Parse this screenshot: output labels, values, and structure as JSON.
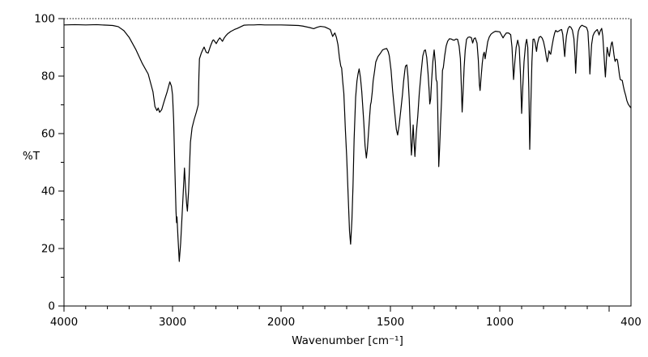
{
  "figure": {
    "background": "#ffffff",
    "line_color": "#000000"
  },
  "chart_data": {
    "type": "line",
    "title": "",
    "xlabel": "Wavenumber [cm⁻¹]",
    "ylabel": "%T",
    "xlim": [
      4000,
      400
    ],
    "ylim": [
      0,
      100
    ],
    "x_axis": {
      "reversed": true,
      "split_scale_at": 2000,
      "major_ticks": [
        4000,
        3000,
        2000,
        1500,
        1000,
        500
      ],
      "minor_ticks": [
        3800,
        3600,
        3400,
        3200,
        2800,
        2600,
        2400,
        2200,
        1900,
        1800,
        1700,
        1600,
        1400,
        1300,
        1200,
        1100,
        900,
        800,
        700,
        600
      ],
      "labels": [
        {
          "value": 4000,
          "text": "4000"
        },
        {
          "value": 3000,
          "text": "3000"
        },
        {
          "value": 2000,
          "text": "2000"
        },
        {
          "value": 1500,
          "text": "1500"
        },
        {
          "value": 1000,
          "text": "1000"
        },
        {
          "value": 400,
          "text": "400"
        }
      ]
    },
    "y_axis": {
      "major_ticks": [
        0,
        20,
        40,
        60,
        80,
        100
      ],
      "minor_ticks": [
        10,
        30,
        50,
        70,
        90
      ],
      "labels": [
        {
          "value": 0,
          "text": "0"
        },
        {
          "value": 20,
          "text": "20"
        },
        {
          "value": 40,
          "text": "40"
        },
        {
          "value": 60,
          "text": "60"
        },
        {
          "value": 80,
          "text": "80"
        },
        {
          "value": 100,
          "text": "100"
        }
      ]
    },
    "points": [
      [
        4000,
        97.8
      ],
      [
        3900,
        97.9
      ],
      [
        3800,
        97.8
      ],
      [
        3700,
        97.9
      ],
      [
        3650,
        97.8
      ],
      [
        3600,
        97.7
      ],
      [
        3550,
        97.6
      ],
      [
        3500,
        97.2
      ],
      [
        3448,
        95.8
      ],
      [
        3400,
        93.5
      ],
      [
        3336,
        89.1
      ],
      [
        3280,
        84.5
      ],
      [
        3224,
        80.7
      ],
      [
        3180,
        74.5
      ],
      [
        3162,
        69.4
      ],
      [
        3144,
        68.0
      ],
      [
        3132,
        68.9
      ],
      [
        3119,
        67.4
      ],
      [
        3100,
        68.3
      ],
      [
        3075,
        71.5
      ],
      [
        3050,
        74.5
      ],
      [
        3025,
        78.0
      ],
      [
        3010,
        76.5
      ],
      [
        3000,
        73.5
      ],
      [
        2990,
        65.0
      ],
      [
        2978,
        47.0
      ],
      [
        2968,
        33.0
      ],
      [
        2963,
        29.0
      ],
      [
        2959,
        31.0
      ],
      [
        2950,
        24.0
      ],
      [
        2938,
        15.5
      ],
      [
        2925,
        22.0
      ],
      [
        2910,
        33.0
      ],
      [
        2898,
        42.0
      ],
      [
        2890,
        48.0
      ],
      [
        2880,
        41.0
      ],
      [
        2870,
        35.5
      ],
      [
        2863,
        33.0
      ],
      [
        2852,
        40.0
      ],
      [
        2842,
        50.0
      ],
      [
        2835,
        57.0
      ],
      [
        2820,
        62.0
      ],
      [
        2800,
        65.0
      ],
      [
        2780,
        67.5
      ],
      [
        2763,
        70.0
      ],
      [
        2757,
        80.0
      ],
      [
        2752,
        86.0
      ],
      [
        2735,
        88.0
      ],
      [
        2720,
        89.3
      ],
      [
        2709,
        90.1
      ],
      [
        2690,
        88.3
      ],
      [
        2672,
        88.0
      ],
      [
        2650,
        90.5
      ],
      [
        2630,
        92.4
      ],
      [
        2622,
        92.6
      ],
      [
        2610,
        92.0
      ],
      [
        2597,
        91.3
      ],
      [
        2580,
        92.5
      ],
      [
        2565,
        93.3
      ],
      [
        2552,
        92.7
      ],
      [
        2540,
        92.1
      ],
      [
        2525,
        93.2
      ],
      [
        2510,
        94.0
      ],
      [
        2490,
        94.8
      ],
      [
        2465,
        95.5
      ],
      [
        2430,
        96.2
      ],
      [
        2403,
        96.6
      ],
      [
        2370,
        97.2
      ],
      [
        2343,
        97.7
      ],
      [
        2300,
        97.8
      ],
      [
        2250,
        97.8
      ],
      [
        2200,
        97.9
      ],
      [
        2150,
        97.8
      ],
      [
        2100,
        97.8
      ],
      [
        2050,
        97.8
      ],
      [
        2000,
        97.8
      ],
      [
        1960,
        97.7
      ],
      [
        1920,
        97.6
      ],
      [
        1900,
        97.4
      ],
      [
        1870,
        96.9
      ],
      [
        1851,
        96.5
      ],
      [
        1835,
        97.0
      ],
      [
        1820,
        97.3
      ],
      [
        1800,
        97.1
      ],
      [
        1789,
        96.7
      ],
      [
        1775,
        96.2
      ],
      [
        1764,
        93.8
      ],
      [
        1758,
        94.6
      ],
      [
        1754,
        95.0
      ],
      [
        1747,
        93.5
      ],
      [
        1740,
        91.0
      ],
      [
        1733,
        86.3
      ],
      [
        1727,
        83.5
      ],
      [
        1723,
        82.8
      ],
      [
        1718,
        78.0
      ],
      [
        1713,
        74.0
      ],
      [
        1709,
        67.0
      ],
      [
        1706,
        61.4
      ],
      [
        1700,
        52.0
      ],
      [
        1693,
        38.0
      ],
      [
        1687,
        26.0
      ],
      [
        1682,
        21.5
      ],
      [
        1676,
        30.0
      ],
      [
        1671,
        42.0
      ],
      [
        1666,
        58.0
      ],
      [
        1659,
        72.7
      ],
      [
        1653,
        78.3
      ],
      [
        1648,
        80.8
      ],
      [
        1643,
        82.5
      ],
      [
        1637,
        79.5
      ],
      [
        1631,
        74.6
      ],
      [
        1622,
        64.2
      ],
      [
        1616,
        55.8
      ],
      [
        1610,
        51.5
      ],
      [
        1605,
        55.0
      ],
      [
        1601,
        59.4
      ],
      [
        1595,
        66.0
      ],
      [
        1591,
        70.0
      ],
      [
        1588,
        71.0
      ],
      [
        1583,
        74.5
      ],
      [
        1579,
        78.3
      ],
      [
        1572,
        82.0
      ],
      [
        1567,
        84.9
      ],
      [
        1557,
        86.8
      ],
      [
        1548,
        87.7
      ],
      [
        1540,
        88.6
      ],
      [
        1536,
        89.1
      ],
      [
        1527,
        89.4
      ],
      [
        1517,
        89.6
      ],
      [
        1510,
        88.5
      ],
      [
        1505,
        87.0
      ],
      [
        1497,
        82.0
      ],
      [
        1490,
        75.0
      ],
      [
        1480,
        67.0
      ],
      [
        1473,
        61.5
      ],
      [
        1467,
        59.5
      ],
      [
        1460,
        63.0
      ],
      [
        1452,
        68.5
      ],
      [
        1445,
        73.5
      ],
      [
        1440,
        78.0
      ],
      [
        1434,
        82.0
      ],
      [
        1431,
        83.5
      ],
      [
        1425,
        83.9
      ],
      [
        1420,
        80.0
      ],
      [
        1414,
        72.0
      ],
      [
        1409,
        62.0
      ],
      [
        1404,
        52.5
      ],
      [
        1400,
        57.0
      ],
      [
        1396,
        63.0
      ],
      [
        1392,
        57.0
      ],
      [
        1388,
        52.0
      ],
      [
        1382,
        60.0
      ],
      [
        1375,
        66.0
      ],
      [
        1368,
        74.0
      ],
      [
        1360,
        81.0
      ],
      [
        1352,
        87.0
      ],
      [
        1345,
        88.9
      ],
      [
        1340,
        89.1
      ],
      [
        1334,
        86.5
      ],
      [
        1328,
        81.0
      ],
      [
        1323,
        75.0
      ],
      [
        1320,
        70.3
      ],
      [
        1316,
        72.0
      ],
      [
        1312,
        78.0
      ],
      [
        1306,
        85.0
      ],
      [
        1300,
        89.1
      ],
      [
        1295,
        85.0
      ],
      [
        1291,
        78.8
      ],
      [
        1287,
        78.0
      ],
      [
        1284,
        70.0
      ],
      [
        1281,
        58.0
      ],
      [
        1279,
        48.5
      ],
      [
        1275,
        55.0
      ],
      [
        1271,
        63.0
      ],
      [
        1266,
        72.0
      ],
      [
        1262,
        82.0
      ],
      [
        1258,
        83.0
      ],
      [
        1252,
        87.0
      ],
      [
        1245,
        90.5
      ],
      [
        1238,
        92.2
      ],
      [
        1230,
        93.0
      ],
      [
        1222,
        92.9
      ],
      [
        1215,
        92.6
      ],
      [
        1208,
        92.5
      ],
      [
        1200,
        92.9
      ],
      [
        1193,
        92.8
      ],
      [
        1186,
        90.5
      ],
      [
        1180,
        86.0
      ],
      [
        1176,
        77.0
      ],
      [
        1172,
        67.5
      ],
      [
        1168,
        74.0
      ],
      [
        1163,
        83.0
      ],
      [
        1158,
        89.0
      ],
      [
        1152,
        92.8
      ],
      [
        1145,
        93.5
      ],
      [
        1138,
        93.6
      ],
      [
        1130,
        93.4
      ],
      [
        1124,
        91.5
      ],
      [
        1118,
        93.0
      ],
      [
        1112,
        93.3
      ],
      [
        1104,
        91.5
      ],
      [
        1098,
        85.5
      ],
      [
        1093,
        77.0
      ],
      [
        1090,
        75.0
      ],
      [
        1086,
        79.0
      ],
      [
        1080,
        84.5
      ],
      [
        1075,
        87.5
      ],
      [
        1071,
        88.3
      ],
      [
        1067,
        86.0
      ],
      [
        1061,
        89.0
      ],
      [
        1055,
        92.0
      ],
      [
        1048,
        93.6
      ],
      [
        1040,
        94.6
      ],
      [
        1030,
        95.2
      ],
      [
        1020,
        95.6
      ],
      [
        1010,
        95.5
      ],
      [
        1000,
        95.4
      ],
      [
        993,
        94.4
      ],
      [
        985,
        93.3
      ],
      [
        978,
        94.2
      ],
      [
        970,
        95.0
      ],
      [
        960,
        95.0
      ],
      [
        950,
        94.4
      ],
      [
        944,
        90.0
      ],
      [
        937,
        78.8
      ],
      [
        931,
        85.0
      ],
      [
        925,
        90.0
      ],
      [
        918,
        92.5
      ],
      [
        911,
        90.0
      ],
      [
        905,
        80.0
      ],
      [
        900,
        67.0
      ],
      [
        895,
        76.0
      ],
      [
        889,
        85.0
      ],
      [
        882,
        91.0
      ],
      [
        877,
        92.8
      ],
      [
        872,
        90.0
      ],
      [
        867,
        75.0
      ],
      [
        863,
        54.5
      ],
      [
        858,
        70.0
      ],
      [
        853,
        85.0
      ],
      [
        848,
        92.8
      ],
      [
        843,
        92.9
      ],
      [
        838,
        91.5
      ],
      [
        832,
        88.6
      ],
      [
        827,
        91.5
      ],
      [
        820,
        93.5
      ],
      [
        813,
        93.8
      ],
      [
        806,
        93.2
      ],
      [
        800,
        92.0
      ],
      [
        793,
        89.5
      ],
      [
        787,
        86.5
      ],
      [
        783,
        85.0
      ],
      [
        779,
        86.5
      ],
      [
        775,
        88.8
      ],
      [
        771,
        88.0
      ],
      [
        767,
        87.6
      ],
      [
        761,
        90.5
      ],
      [
        755,
        93.0
      ],
      [
        749,
        95.0
      ],
      [
        744,
        95.9
      ],
      [
        738,
        95.4
      ],
      [
        731,
        95.6
      ],
      [
        724,
        96.0
      ],
      [
        717,
        96.2
      ],
      [
        712,
        94.5
      ],
      [
        707,
        90.0
      ],
      [
        703,
        86.8
      ],
      [
        699,
        91.0
      ],
      [
        695,
        94.0
      ],
      [
        688,
        96.5
      ],
      [
        681,
        97.3
      ],
      [
        675,
        97.0
      ],
      [
        668,
        96.0
      ],
      [
        661,
        93.0
      ],
      [
        656,
        87.0
      ],
      [
        653,
        81.0
      ],
      [
        650,
        86.0
      ],
      [
        646,
        92.0
      ],
      [
        641,
        95.5
      ],
      [
        635,
        96.8
      ],
      [
        629,
        97.4
      ],
      [
        624,
        97.7
      ],
      [
        617,
        97.4
      ],
      [
        610,
        97.2
      ],
      [
        603,
        96.9
      ],
      [
        597,
        95.5
      ],
      [
        592,
        89.0
      ],
      [
        588,
        80.7
      ],
      [
        584,
        86.0
      ],
      [
        580,
        91.0
      ],
      [
        574,
        94.0
      ],
      [
        567,
        95.2
      ],
      [
        560,
        95.8
      ],
      [
        554,
        96.2
      ],
      [
        550,
        95.3
      ],
      [
        546,
        94.3
      ],
      [
        541,
        95.6
      ],
      [
        534,
        96.6
      ],
      [
        529,
        94.0
      ],
      [
        524,
        88.0
      ],
      [
        520,
        83.0
      ],
      [
        517,
        79.7
      ],
      [
        513,
        85.0
      ],
      [
        509,
        90.0
      ],
      [
        505,
        88.5
      ],
      [
        502,
        87.5
      ],
      [
        499,
        86.8
      ],
      [
        494,
        89.5
      ],
      [
        489,
        91.5
      ],
      [
        486,
        91.9
      ],
      [
        482,
        90.0
      ],
      [
        478,
        87.5
      ],
      [
        474,
        85.5
      ],
      [
        472,
        85.1
      ],
      [
        469,
        85.8
      ],
      [
        465,
        85.9
      ],
      [
        462,
        85.6
      ],
      [
        458,
        83.5
      ],
      [
        453,
        80.5
      ],
      [
        449,
        78.8
      ],
      [
        444,
        78.6
      ],
      [
        440,
        78.5
      ],
      [
        435,
        76.5
      ],
      [
        430,
        74.8
      ],
      [
        424,
        73.2
      ],
      [
        419,
        71.5
      ],
      [
        413,
        70.3
      ],
      [
        407,
        69.6
      ],
      [
        402,
        69.1
      ],
      [
        400,
        69.0
      ]
    ]
  }
}
